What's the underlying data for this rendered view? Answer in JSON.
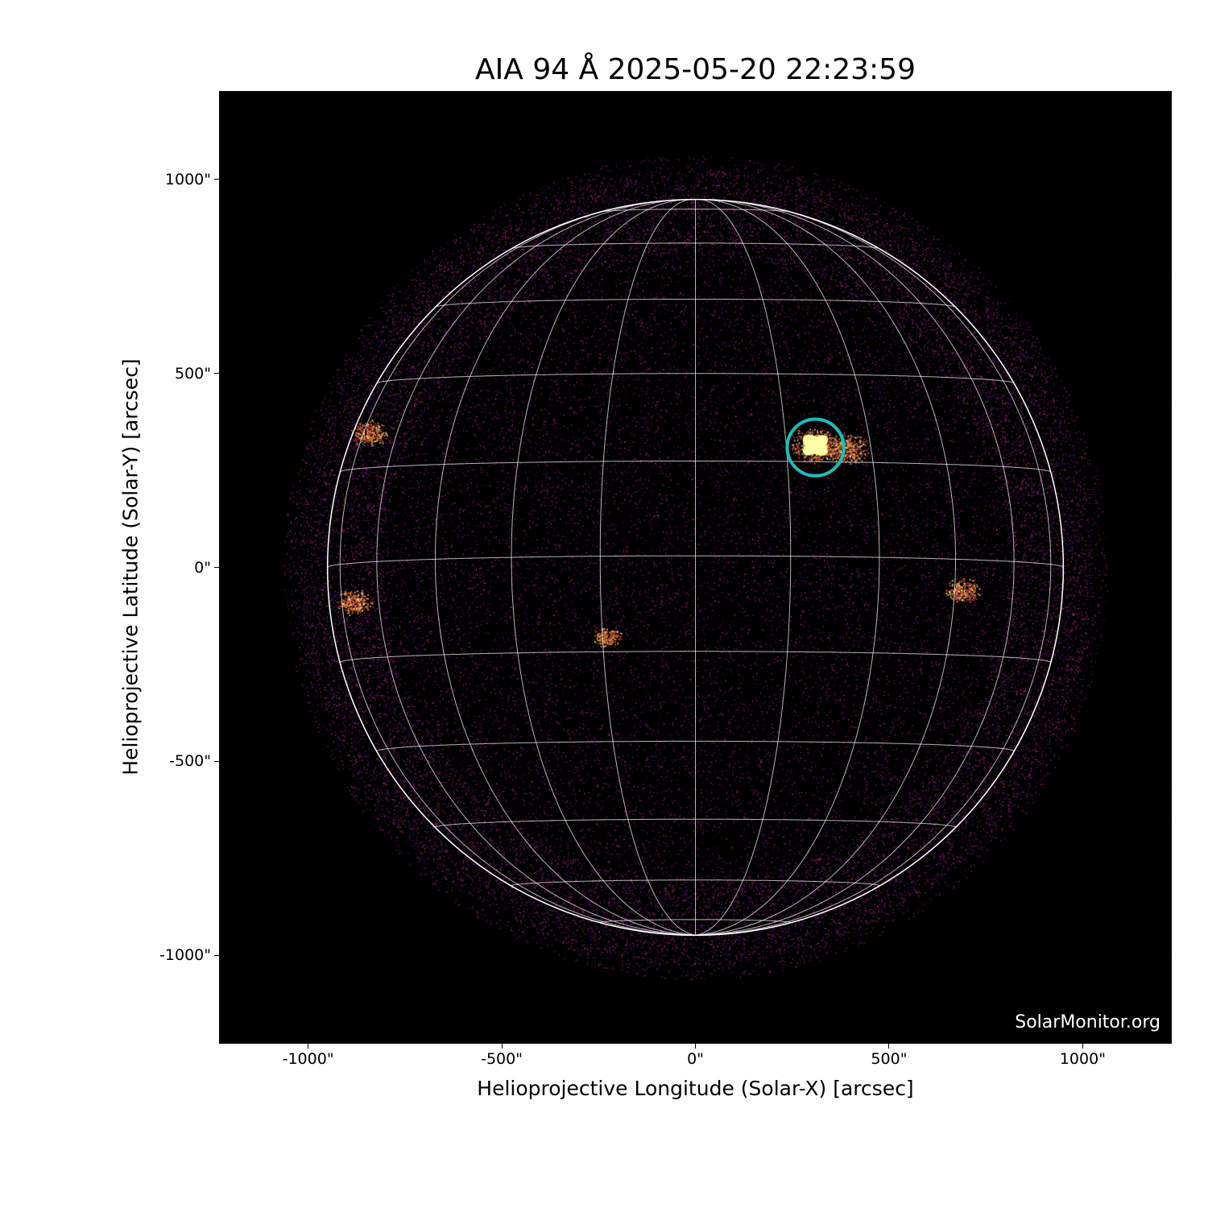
{
  "chart_data": {
    "type": "heatmap",
    "title": "AIA 94 Å 2025-05-20 22:23:59",
    "xlabel": "Helioprojective Longitude (Solar-X) [arcsec]",
    "ylabel": "Helioprojective Latitude (Solar-Y) [arcsec]",
    "xlim": [
      -1230,
      1230
    ],
    "ylim": [
      -1228,
      1228
    ],
    "xticks": [
      {
        "value": -1000,
        "label": "-1000\""
      },
      {
        "value": -500,
        "label": "-500\""
      },
      {
        "value": 0,
        "label": "0\""
      },
      {
        "value": 500,
        "label": "500\""
      },
      {
        "value": 1000,
        "label": "1000\""
      }
    ],
    "yticks": [
      {
        "value": 1000,
        "label": "1000\""
      },
      {
        "value": 500,
        "label": "500\""
      },
      {
        "value": 0,
        "label": "0\""
      },
      {
        "value": -500,
        "label": "-500\""
      },
      {
        "value": -1000,
        "label": "-1000\""
      }
    ],
    "solar_radius_arcsec": 950,
    "grid_spacing_deg": 15,
    "colormap": "inferno-like (black-purple-orange-yellow)",
    "grid_color": "#ffffff",
    "annotation": {
      "shape": "circle",
      "center": [
        310,
        309
      ],
      "radius": 73,
      "color": "#1abfb8"
    },
    "bright_regions": [
      {
        "x": 310,
        "y": 315,
        "intensity": 1.0
      },
      {
        "x": 390,
        "y": 305,
        "intensity": 0.8
      },
      {
        "x": -845,
        "y": 345,
        "intensity": 0.6
      },
      {
        "x": -880,
        "y": -90,
        "intensity": 0.6
      },
      {
        "x": 690,
        "y": -60,
        "intensity": 0.6
      },
      {
        "x": -230,
        "y": -180,
        "intensity": 0.4
      }
    ],
    "watermark": "SolarMonitor.org"
  }
}
